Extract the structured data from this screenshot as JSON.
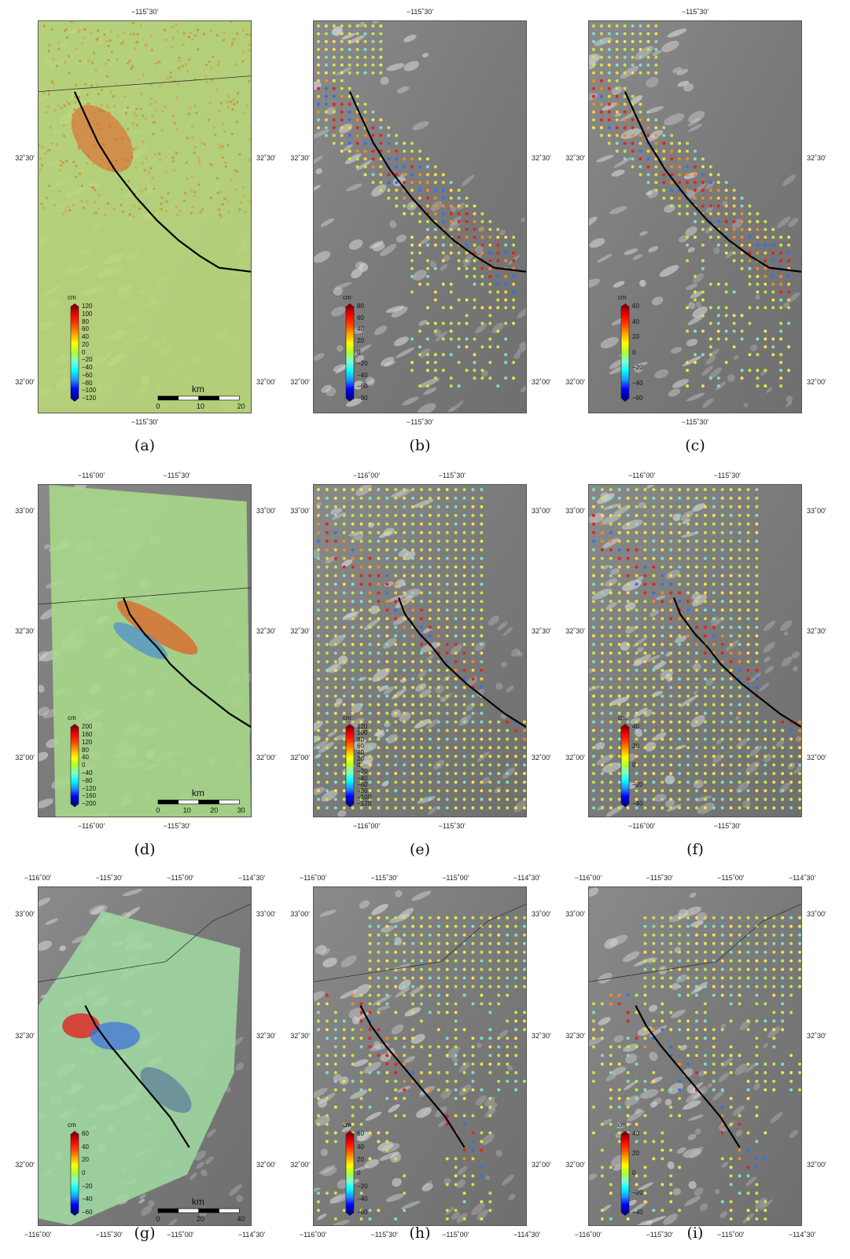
{
  "units": "cm",
  "colormap": [
    "#00008b",
    "#0000ff",
    "#1e90ff",
    "#00ffff",
    "#7fffd4",
    "#adff2f",
    "#ffff00",
    "#ffa500",
    "#ff4500",
    "#ff0000",
    "#8b0000"
  ],
  "fault_color": "#000000",
  "panels": [
    {
      "id": "a",
      "caption": "(a)",
      "top_ticks": [
        "−115˚30'"
      ],
      "bottom_ticks": [
        "−115˚30'"
      ],
      "left_ticks": [
        "32˚30'",
        "32˚00'"
      ],
      "right_ticks": [
        "32˚30'",
        "32˚00'"
      ],
      "colorbar": {
        "unit": "cm",
        "labels": [
          "120",
          "100",
          "80",
          "60",
          "40",
          "20",
          "0",
          "−20",
          "−40",
          "−60",
          "−80",
          "−100",
          "−120"
        ]
      },
      "scale": {
        "label": "km",
        "ticks": [
          "0",
          "10",
          "20"
        ]
      },
      "style": "sar-orange"
    },
    {
      "id": "b",
      "caption": "(b)",
      "top_ticks": [
        "−115˚30'"
      ],
      "bottom_ticks": [
        "−115˚30'"
      ],
      "left_ticks": [
        "32˚30'",
        "32˚00'"
      ],
      "right_ticks": [
        "32˚30'",
        "32˚00'"
      ],
      "colorbar": {
        "unit": "cm",
        "labels": [
          "80",
          "60",
          "40",
          "20",
          "0",
          "−20",
          "−40",
          "−60",
          "−80"
        ]
      },
      "style": "dots-b"
    },
    {
      "id": "c",
      "caption": "(c)",
      "top_ticks": [
        "−115˚30'"
      ],
      "bottom_ticks": [
        "−115˚30'"
      ],
      "left_ticks": [
        "32˚30'",
        "32˚00'"
      ],
      "right_ticks": [
        "32˚30'",
        "32˚00'"
      ],
      "colorbar": {
        "unit": "cm",
        "labels": [
          "60",
          "40",
          "20",
          "0",
          "−20",
          "−40",
          "−60"
        ]
      },
      "style": "dots-c"
    },
    {
      "id": "d",
      "caption": "(d)",
      "top_ticks": [
        "−116˚00'",
        "−115˚30'"
      ],
      "bottom_ticks": [
        "−116˚00'",
        "−115˚30'"
      ],
      "left_ticks": [
        "33˚00'",
        "32˚30'",
        "32˚00'"
      ],
      "right_ticks": [
        "33˚00'",
        "32˚30'",
        "32˚00'"
      ],
      "colorbar": {
        "unit": "cm",
        "labels": [
          "200",
          "160",
          "120",
          "80",
          "40",
          "0",
          "−40",
          "−80",
          "−120",
          "−160",
          "−200"
        ]
      },
      "scale": {
        "label": "km",
        "ticks": [
          "0",
          "10",
          "20",
          "30"
        ]
      },
      "style": "sar-green"
    },
    {
      "id": "e",
      "caption": "(e)",
      "top_ticks": [
        "−116˚00'",
        "−115˚30'"
      ],
      "bottom_ticks": [
        "−116˚00'",
        "−115˚30'"
      ],
      "left_ticks": [
        "33˚00'",
        "32˚30'",
        "32˚00'"
      ],
      "right_ticks": [
        "33˚00'",
        "32˚30'",
        "32˚00'"
      ],
      "colorbar": {
        "unit": "cm",
        "labels": [
          "120",
          "100",
          "80",
          "60",
          "40",
          "20",
          "0",
          "−20",
          "−40",
          "−60",
          "−80",
          "−100",
          "−120"
        ]
      },
      "style": "dots-e"
    },
    {
      "id": "f",
      "caption": "(f)",
      "top_ticks": [
        "−116˚00'",
        "−115˚30'"
      ],
      "bottom_ticks": [
        "−116˚00'",
        "−115˚30'"
      ],
      "left_ticks": [
        "33˚00'",
        "32˚30'",
        "32˚00'"
      ],
      "right_ticks": [
        "33˚00'",
        "32˚30'",
        "32˚00'"
      ],
      "colorbar": {
        "unit": "cm",
        "labels": [
          "40",
          "20",
          "0",
          "−20",
          "−40"
        ]
      },
      "style": "dots-f"
    },
    {
      "id": "g",
      "caption": "(g)",
      "top_ticks": [
        "−116˚00'",
        "−115˚30'",
        "−115˚00'",
        "−114˚30'"
      ],
      "bottom_ticks": [
        "−116˚00'",
        "−115˚30'",
        "−115˚00'",
        "−114˚30'"
      ],
      "left_ticks": [
        "33˚00'",
        "32˚30'",
        "32˚00'"
      ],
      "right_ticks": [
        "33˚00'",
        "32˚30'",
        "32˚00'"
      ],
      "colorbar": {
        "unit": "cm",
        "labels": [
          "60",
          "40",
          "20",
          "0",
          "−20",
          "−40",
          "−60"
        ]
      },
      "scale": {
        "label": "km",
        "ticks": [
          "0",
          "20",
          "40"
        ]
      },
      "style": "sar-blue"
    },
    {
      "id": "h",
      "caption": "(h)",
      "top_ticks": [
        "−116˚00'",
        "−115˚30'",
        "−115˚00'",
        "−114˚30'"
      ],
      "bottom_ticks": [
        "−116˚00'",
        "−115˚30'",
        "−115˚00'",
        "−114˚30'"
      ],
      "left_ticks": [
        "33˚00'",
        "32˚30'",
        "32˚00'"
      ],
      "right_ticks": [
        "33˚00'",
        "32˚30'",
        "32˚00'"
      ],
      "colorbar": {
        "unit": "cm",
        "labels": [
          "60",
          "40",
          "20",
          "0",
          "−20",
          "−40",
          "−60"
        ]
      },
      "style": "dots-h"
    },
    {
      "id": "i",
      "caption": "(i)",
      "top_ticks": [
        "−116˚00'",
        "−115˚30'",
        "−115˚00'",
        "−114˚30'"
      ],
      "bottom_ticks": [
        "−116˚00'",
        "−115˚30'",
        "−115˚00'",
        "−114˚30'"
      ],
      "left_ticks": [
        "33˚00'",
        "32˚30'",
        "32˚00'"
      ],
      "right_ticks": [
        "33˚00'",
        "32˚30'",
        "32˚00'"
      ],
      "colorbar": {
        "unit": "cm",
        "labels": [
          "40",
          "20",
          "0",
          "−20",
          "−40"
        ]
      },
      "style": "dots-i"
    }
  ]
}
